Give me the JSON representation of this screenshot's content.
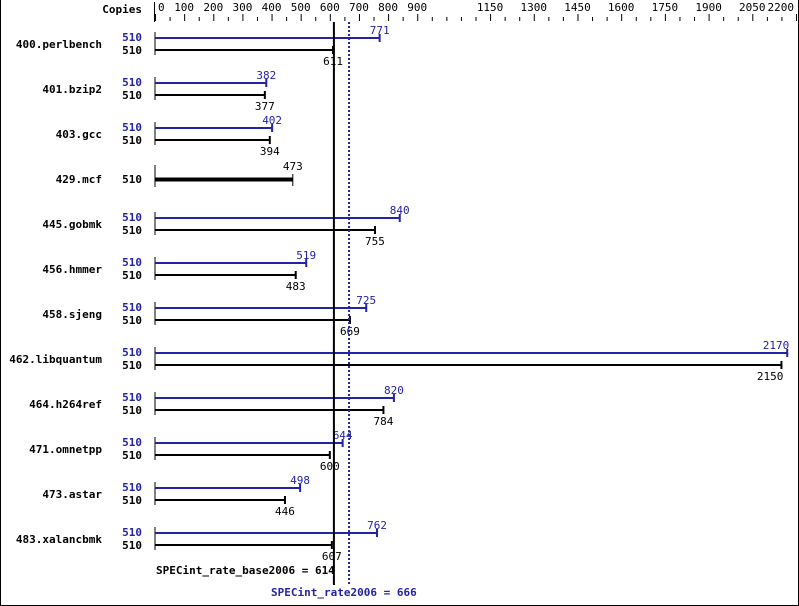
{
  "chart_data": {
    "type": "bar",
    "orientation": "horizontal",
    "axis_header": "Copies",
    "xlim": [
      0,
      2200
    ],
    "tick_labels": [
      "0",
      "100",
      "200",
      "300",
      "400",
      "500",
      "600",
      "700",
      "800",
      "900",
      "1150",
      "1300",
      "1450",
      "1600",
      "1750",
      "1900",
      "2050",
      "2200"
    ],
    "colors": {
      "peak": "#2323a8",
      "base": "#000000"
    },
    "benchmarks": [
      {
        "name": "400.perlbench",
        "peak_copies": "510",
        "peak": 771,
        "base_copies": "510",
        "base": 611
      },
      {
        "name": "401.bzip2",
        "peak_copies": "510",
        "peak": 382,
        "base_copies": "510",
        "base": 377
      },
      {
        "name": "403.gcc",
        "peak_copies": "510",
        "peak": 402,
        "base_copies": "510",
        "base": 394
      },
      {
        "name": "429.mcf",
        "peak_copies": null,
        "peak": null,
        "base_copies": "510",
        "base": 473
      },
      {
        "name": "445.gobmk",
        "peak_copies": "510",
        "peak": 840,
        "base_copies": "510",
        "base": 755
      },
      {
        "name": "456.hmmer",
        "peak_copies": "510",
        "peak": 519,
        "base_copies": "510",
        "base": 483
      },
      {
        "name": "458.sjeng",
        "peak_copies": "510",
        "peak": 725,
        "base_copies": "510",
        "base": 669
      },
      {
        "name": "462.libquantum",
        "peak_copies": "510",
        "peak": 2170,
        "base_copies": "510",
        "base": 2150
      },
      {
        "name": "464.h264ref",
        "peak_copies": "510",
        "peak": 820,
        "base_copies": "510",
        "base": 784
      },
      {
        "name": "471.omnetpp",
        "peak_copies": "510",
        "peak": 644,
        "base_copies": "510",
        "base": 600
      },
      {
        "name": "473.astar",
        "peak_copies": "510",
        "peak": 498,
        "base_copies": "510",
        "base": 446
      },
      {
        "name": "483.xalancbmk",
        "peak_copies": "510",
        "peak": 762,
        "base_copies": "510",
        "base": 607
      }
    ],
    "base_summary": {
      "label": "SPECint_rate_base2006 = 614",
      "value": 614
    },
    "peak_summary": {
      "label": "SPECint_rate2006 = 666",
      "value": 666
    }
  }
}
